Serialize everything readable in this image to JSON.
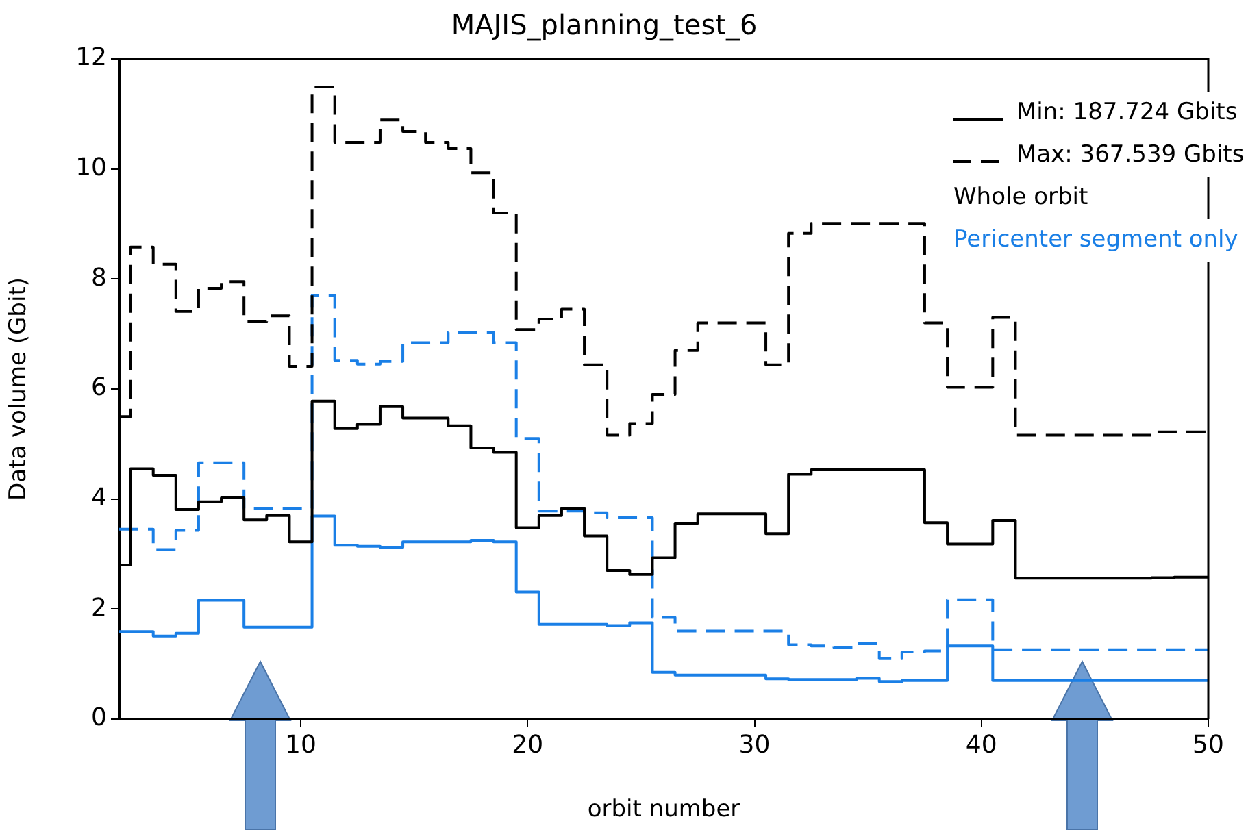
{
  "chart_data": {
    "type": "step",
    "title": "MAJIS_planning_test_6",
    "xlabel": "orbit number",
    "ylabel": "Data volume (Gbit)",
    "annotations": [
      "Min: 187.724 Gbits",
      "Max: 367.539 Gbits",
      "Whole orbit",
      "Pericenter segment only"
    ],
    "x": [
      2,
      3,
      4,
      5,
      6,
      7,
      8,
      9,
      10,
      11,
      12,
      13,
      14,
      15,
      16,
      17,
      18,
      19,
      20,
      21,
      22,
      23,
      24,
      25,
      26,
      27,
      28,
      29,
      30,
      31,
      32,
      33,
      34,
      35,
      36,
      37,
      38,
      39,
      40,
      41,
      42,
      43,
      44,
      45,
      46,
      47,
      48,
      49,
      50
    ],
    "series": [
      {
        "color": "#000000",
        "line_style": "solid",
        "values": [
          2.8,
          4.55,
          4.43,
          3.81,
          3.95,
          4.02,
          3.62,
          3.7,
          3.22,
          5.78,
          5.28,
          5.36,
          5.68,
          5.47,
          5.47,
          5.33,
          4.93,
          4.85,
          3.48,
          3.7,
          3.83,
          3.33,
          2.7,
          2.63,
          2.93,
          3.56,
          3.73,
          3.73,
          3.73,
          3.37,
          4.45,
          4.53,
          4.53,
          4.53,
          4.53,
          4.53,
          3.57,
          3.18,
          3.18,
          3.61,
          2.56,
          2.56,
          2.56,
          2.56,
          2.56,
          2.56,
          2.57,
          2.58,
          2.58
        ]
      },
      {
        "color": "#000000",
        "line_style": "dashed",
        "values": [
          5.5,
          8.58,
          8.27,
          7.41,
          7.83,
          7.95,
          7.23,
          7.33,
          6.41,
          11.49,
          10.48,
          10.48,
          10.89,
          10.68,
          10.48,
          10.37,
          9.93,
          9.2,
          7.08,
          7.27,
          7.45,
          6.44,
          5.16,
          5.37,
          5.9,
          6.7,
          7.2,
          7.2,
          7.2,
          6.44,
          8.83,
          9.01,
          9.01,
          9.01,
          9.01,
          9.01,
          7.2,
          6.03,
          6.03,
          7.3,
          5.16,
          5.16,
          5.16,
          5.16,
          5.16,
          5.16,
          5.22,
          5.22,
          5.22
        ]
      },
      {
        "color": "#1a7fe6",
        "line_style": "solid",
        "values": [
          1.59,
          1.59,
          1.51,
          1.56,
          2.16,
          2.16,
          1.67,
          1.67,
          1.67,
          3.69,
          3.16,
          3.14,
          3.12,
          3.22,
          3.22,
          3.22,
          3.25,
          3.22,
          2.31,
          1.72,
          1.72,
          1.72,
          1.7,
          1.75,
          0.85,
          0.8,
          0.8,
          0.8,
          0.8,
          0.73,
          0.72,
          0.72,
          0.72,
          0.74,
          0.68,
          0.7,
          0.7,
          1.33,
          1.33,
          0.7,
          0.7,
          0.7,
          0.7,
          0.7,
          0.7,
          0.7,
          0.7,
          0.7,
          0.7
        ]
      },
      {
        "color": "#1a7fe6",
        "line_style": "dashed",
        "values": [
          3.45,
          3.45,
          3.08,
          3.43,
          4.66,
          4.66,
          3.83,
          3.83,
          3.83,
          7.7,
          6.52,
          6.45,
          6.5,
          6.84,
          6.84,
          7.03,
          7.03,
          6.84,
          5.1,
          3.78,
          3.78,
          3.75,
          3.66,
          3.66,
          1.85,
          1.6,
          1.6,
          1.6,
          1.6,
          1.6,
          1.35,
          1.33,
          1.3,
          1.37,
          1.1,
          1.22,
          1.24,
          2.17,
          2.17,
          1.26,
          1.26,
          1.26,
          1.26,
          1.26,
          1.26,
          1.26,
          1.26,
          1.26,
          1.26
        ]
      }
    ],
    "xlim": [
      2,
      50
    ],
    "ylim": [
      0,
      12
    ],
    "xticks": [
      10,
      20,
      30,
      40,
      50
    ],
    "yticks": [
      0,
      2,
      4,
      6,
      8,
      10,
      12
    ]
  }
}
